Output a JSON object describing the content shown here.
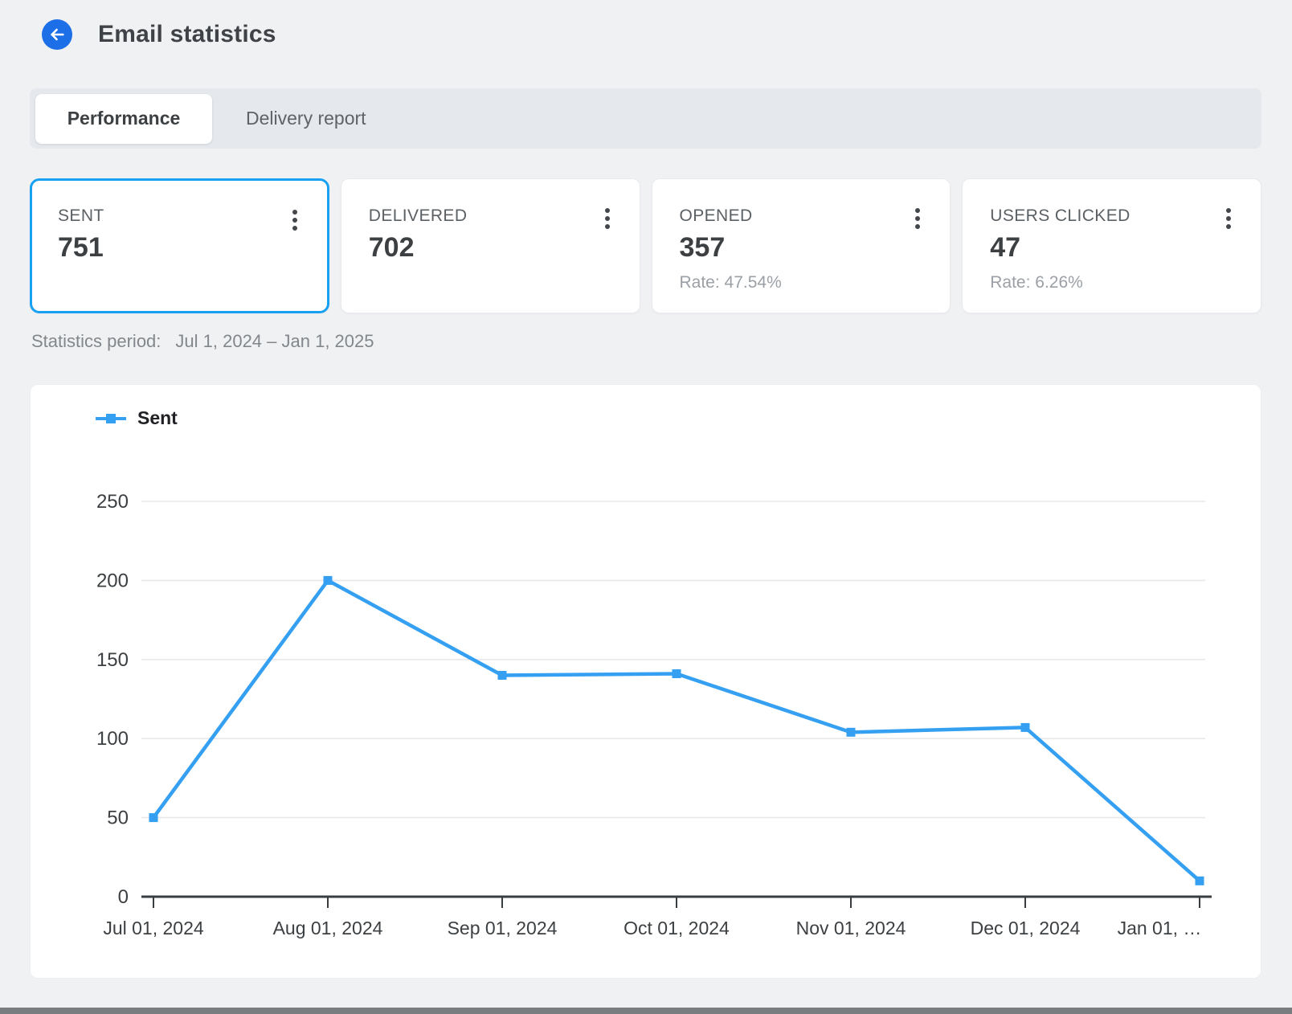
{
  "header": {
    "title": "Email statistics",
    "back_icon": "arrow-left"
  },
  "tabs": [
    {
      "label": "Performance",
      "active": true
    },
    {
      "label": "Delivery report",
      "active": false
    }
  ],
  "stat_cards": [
    {
      "label": "SENT",
      "value": "751",
      "rate": "",
      "selected": true
    },
    {
      "label": "DELIVERED",
      "value": "702",
      "rate": "",
      "selected": false
    },
    {
      "label": "OPENED",
      "value": "357",
      "rate": "Rate: 47.54%",
      "selected": false
    },
    {
      "label": "USERS CLICKED",
      "value": "47",
      "rate": "Rate: 6.26%",
      "selected": false
    }
  ],
  "statistics_period": {
    "label": "Statistics period:",
    "value": "Jul 1, 2024 – Jan 1, 2025"
  },
  "chart_data": {
    "type": "line",
    "title": "",
    "x": [
      "Jul 01, 2024",
      "Aug 01, 2024",
      "Sep 01, 2024",
      "Oct 01, 2024",
      "Nov 01, 2024",
      "Dec 01, 2024",
      "Jan 01, …"
    ],
    "series": [
      {
        "name": "Sent",
        "color": "#35a0f2",
        "values": [
          50,
          200,
          140,
          141,
          104,
          107,
          10
        ]
      }
    ],
    "ylim": [
      0,
      250
    ],
    "yticks": [
      0,
      50,
      100,
      150,
      200,
      250
    ],
    "grid": true,
    "legend_position": "top-left",
    "marker": "square"
  },
  "colors": {
    "back_button": "#1d6fe8",
    "selected_card_border": "#18a0f2",
    "series_line": "#35a0f2",
    "grid_line": "#e8e8ea",
    "axis_line": "#3a3d40",
    "tick_text": "#3c4043",
    "page_background": "#f0f1f2",
    "tabbar_background": "#e5e9ee"
  }
}
